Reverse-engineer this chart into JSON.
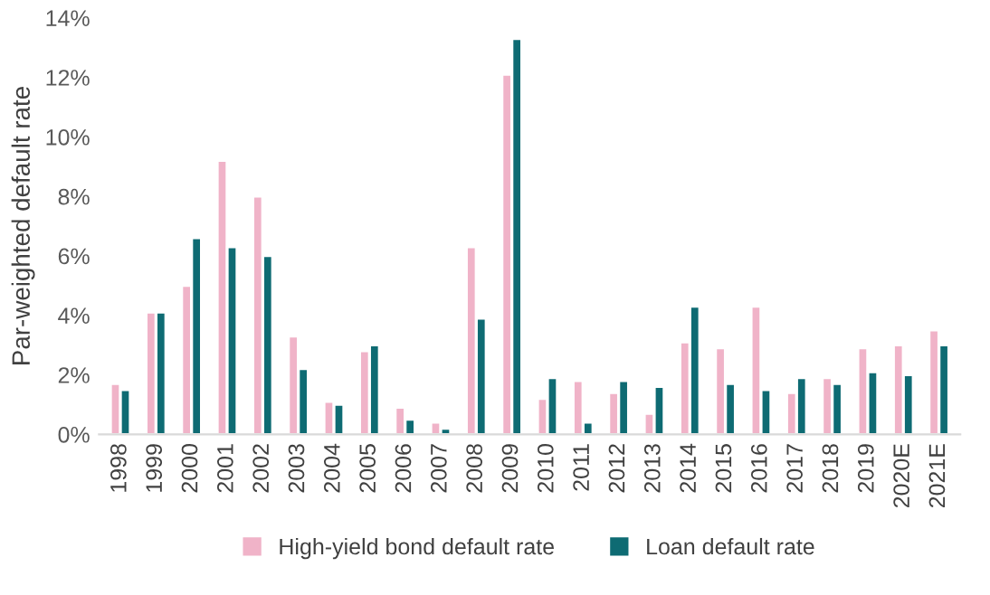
{
  "chart_data": {
    "type": "bar",
    "ylabel": "Par-weighted default rate",
    "categories": [
      "1998",
      "1999",
      "2000",
      "2001",
      "2002",
      "2003",
      "2004",
      "2005",
      "2006",
      "2007",
      "2008",
      "2009",
      "2010",
      "2011",
      "2012",
      "2013",
      "2014",
      "2015",
      "2016",
      "2017",
      "2018",
      "2019",
      "2020E",
      "2021E"
    ],
    "series": [
      {
        "name": "High-yield bond default rate",
        "color": "#f0b3c8",
        "values": [
          1.7,
          4.1,
          5.0,
          9.2,
          8.0,
          3.3,
          1.1,
          2.8,
          0.9,
          0.4,
          6.3,
          12.1,
          1.2,
          1.8,
          1.4,
          0.7,
          3.1,
          2.9,
          4.3,
          1.4,
          1.9,
          2.9,
          3.0,
          3.5
        ]
      },
      {
        "name": "Loan default rate",
        "color": "#0e6b73",
        "values": [
          1.5,
          4.1,
          6.6,
          6.3,
          6.0,
          2.2,
          1.0,
          3.0,
          0.5,
          0.2,
          3.9,
          13.3,
          1.9,
          0.4,
          1.8,
          1.6,
          4.3,
          1.7,
          1.5,
          1.9,
          1.7,
          2.1,
          2.0,
          3.0
        ]
      }
    ],
    "ylim": [
      0,
      14
    ],
    "yticks": [
      {
        "value": 0,
        "label": "0%"
      },
      {
        "value": 2,
        "label": "2%"
      },
      {
        "value": 4,
        "label": "4%"
      },
      {
        "value": 6,
        "label": "6%"
      },
      {
        "value": 8,
        "label": "8%"
      },
      {
        "value": 10,
        "label": "10%"
      },
      {
        "value": 12,
        "label": "12%"
      },
      {
        "value": 14,
        "label": "14%"
      }
    ],
    "grid": false,
    "legend": "bottom"
  }
}
